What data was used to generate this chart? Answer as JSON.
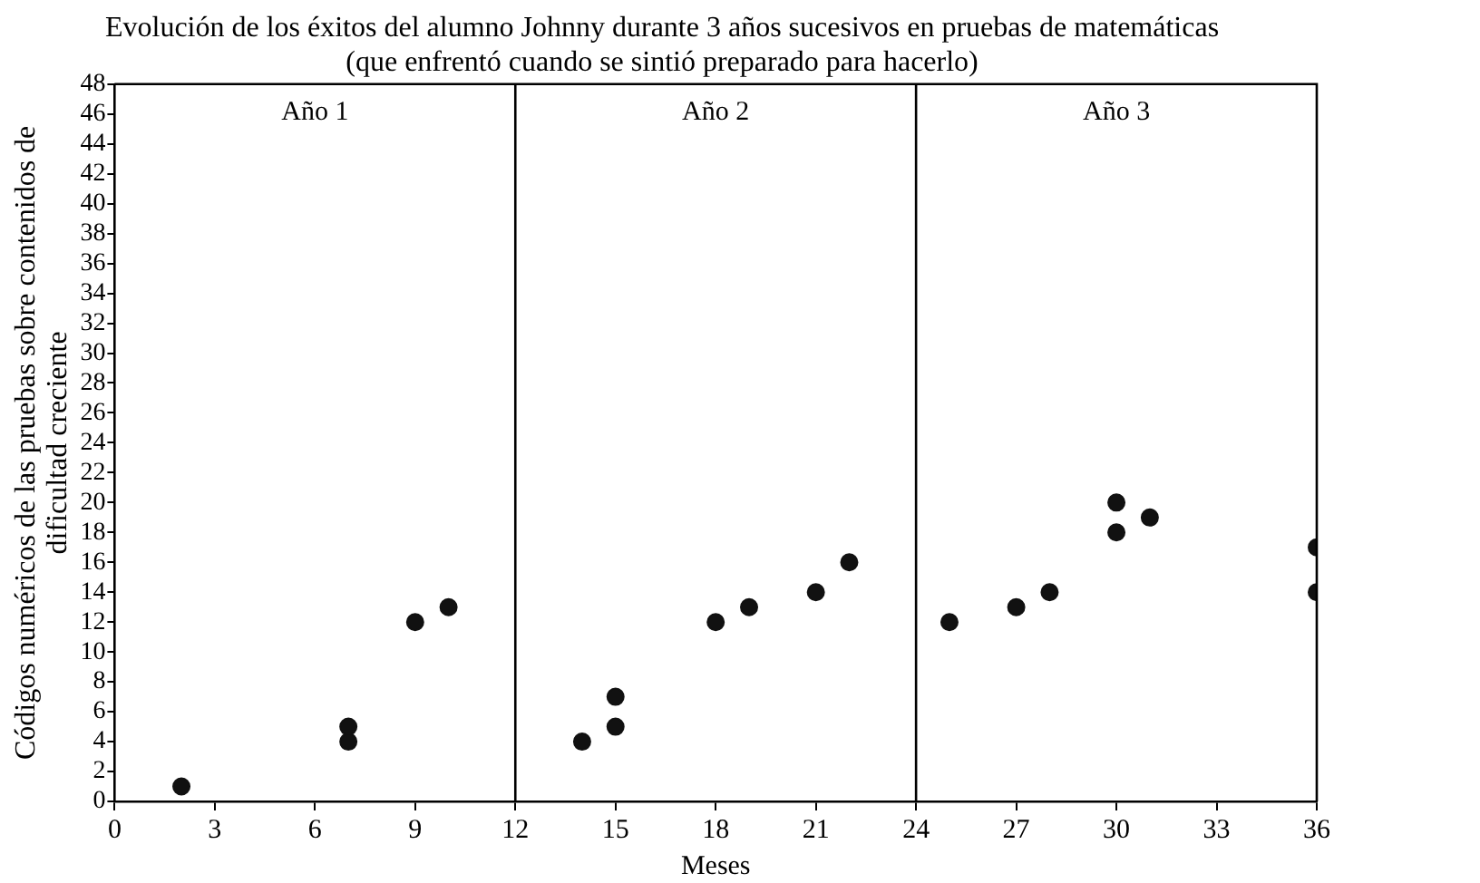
{
  "chart_data": {
    "type": "scatter",
    "title": "Evolución de los éxitos del alumno Johnny durante 3 años sucesivos en pruebas de matemáticas",
    "subtitle": "(que enfrentó cuando se sintió preparado para hacerlo)",
    "xlabel": "Meses",
    "ylabel": "Códigos numéricos de las pruebas sobre contenidos de dificultad creciente",
    "annotations": [
      "Año 1",
      "Año 2",
      "Año 3"
    ],
    "ref_lines": [
      {
        "axis": "x",
        "value": 12,
        "color": "#000000"
      },
      {
        "axis": "x",
        "value": 24,
        "color": "#000000"
      }
    ],
    "series": [
      {
        "color": "#111111",
        "x": [
          2,
          7,
          7,
          9,
          10,
          14,
          15,
          15,
          18,
          19,
          21,
          22,
          25,
          27,
          28,
          30,
          30,
          31,
          36,
          36
        ],
        "values": [
          1,
          5,
          4,
          12,
          13,
          4,
          5,
          7,
          12,
          13,
          14,
          16,
          12,
          13,
          14,
          20,
          18,
          19,
          17,
          14
        ]
      }
    ],
    "xlim": [
      0,
      36
    ],
    "xticks": [
      0,
      3,
      6,
      9,
      12,
      15,
      18,
      21,
      24,
      27,
      30,
      33,
      36
    ],
    "ylim": [
      0,
      48
    ],
    "yticks": [
      0,
      2,
      4,
      6,
      8,
      10,
      12,
      14,
      16,
      18,
      20,
      22,
      24,
      26,
      28,
      30,
      32,
      34,
      36,
      38,
      40,
      42,
      44,
      46,
      48
    ],
    "grid": false,
    "legend": false,
    "marker": "circle"
  }
}
